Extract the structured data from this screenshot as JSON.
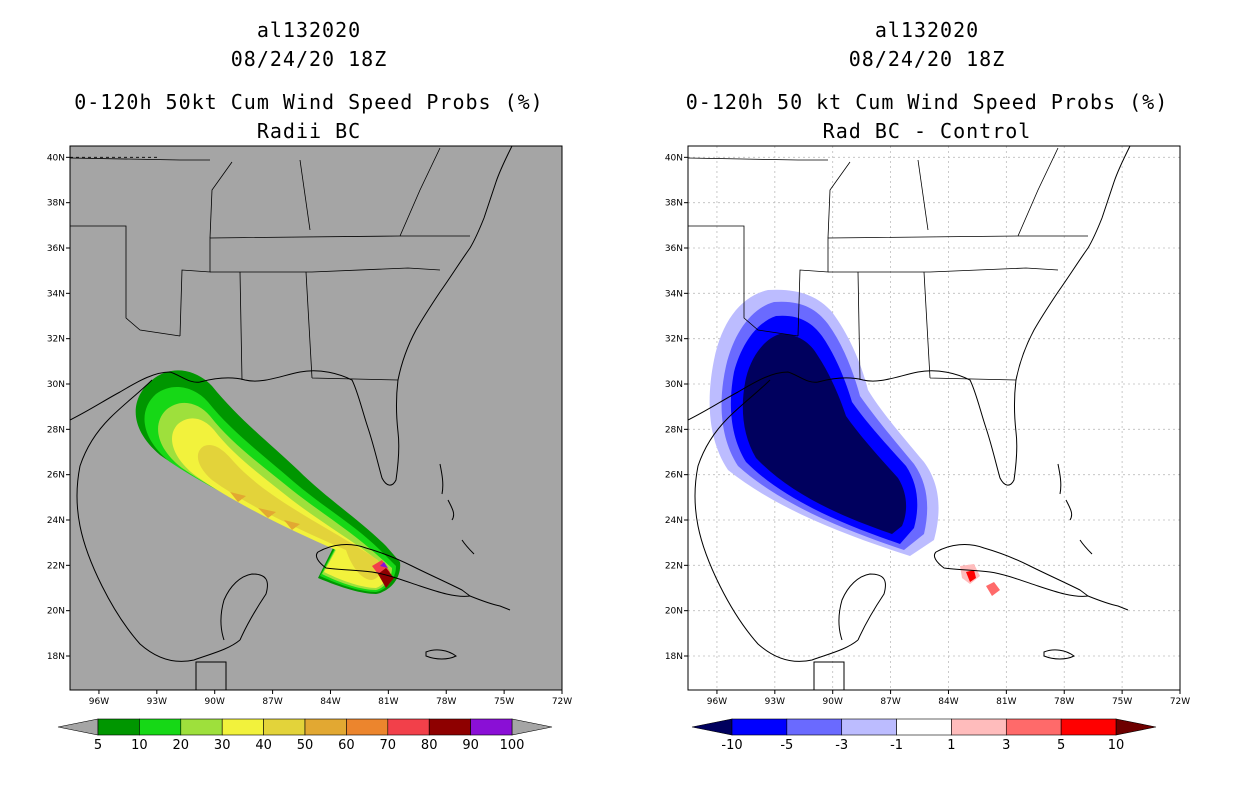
{
  "panels": [
    {
      "id": "left",
      "storm_id": "al132020",
      "datetime": "08/24/20 18Z",
      "title": "0-120h 50kt Cum Wind Speed Probs (%)",
      "subtitle": "Radii BC",
      "background": "#a5a5a5",
      "colorbar": {
        "colors": [
          "#009600",
          "#16d816",
          "#9ee03c",
          "#f2f23c",
          "#e3d33a",
          "#e2a832",
          "#ec852d",
          "#f2404a",
          "#8e0000",
          "#8a0fd6"
        ],
        "labels": [
          "5",
          "10",
          "20",
          "30",
          "40",
          "50",
          "60",
          "70",
          "80",
          "90",
          "100"
        ],
        "under_color": "#a5a5a5",
        "over_color": "#a5a5a5"
      }
    },
    {
      "id": "right",
      "storm_id": "al132020",
      "datetime": "08/24/20 18Z",
      "title": "0-120h 50 kt Cum Wind Speed Probs (%)",
      "subtitle": "Rad BC - Control",
      "background": "#ffffff",
      "colorbar": {
        "colors": [
          "#0000ff",
          "#6a6aff",
          "#bcbcff",
          "#ffffff",
          "#ffbcbc",
          "#ff6a6a",
          "#ff0000"
        ],
        "labels": [
          "-10",
          "-5",
          "-3",
          "-1",
          "1",
          "3",
          "5",
          "10"
        ],
        "under_color": "#00005e",
        "over_color": "#6e0000"
      }
    }
  ],
  "map": {
    "lon_range": [
      -97.5,
      -72
    ],
    "lat_range": [
      16.5,
      40.5
    ],
    "lon_ticks": [
      "96W",
      "93W",
      "90W",
      "87W",
      "84W",
      "81W",
      "78W",
      "75W",
      "72W"
    ],
    "lat_ticks": [
      "18N",
      "20N",
      "22N",
      "24N",
      "26N",
      "28N",
      "30N",
      "32N",
      "34N",
      "36N",
      "38N",
      "40N"
    ]
  }
}
